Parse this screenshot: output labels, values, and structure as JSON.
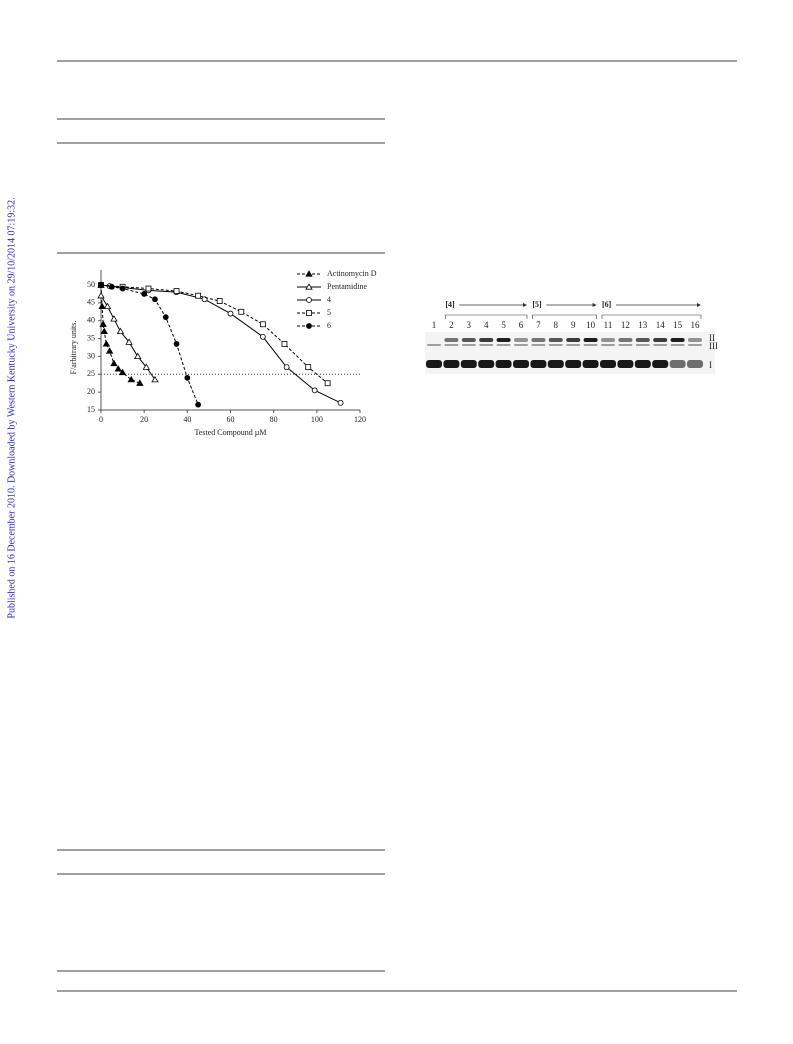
{
  "side_note": "Published on 16 December 2010. Downloaded by Western Kentucky University on 29/10/2014 07:19:32.",
  "chart_data": {
    "type": "line",
    "xlabel": "Tested Compound µM",
    "ylabel": "F/arbitrary units.",
    "xlim": [
      0,
      120
    ],
    "xticks": [
      0,
      20,
      40,
      60,
      80,
      100,
      120
    ],
    "ylim": [
      15,
      50
    ],
    "yticks": [
      15,
      20,
      25,
      30,
      35,
      40,
      45,
      50
    ],
    "reference_line": 25,
    "legend": "top-right",
    "series": [
      {
        "name": "Actinomycin D",
        "color": "#000000",
        "dash": true,
        "marker": "triangle",
        "filled": true,
        "x": [
          0,
          0.5,
          1,
          1.5,
          2.5,
          4,
          6,
          8,
          10,
          14,
          18
        ],
        "values": [
          50,
          44,
          39,
          37,
          33.5,
          31.5,
          28,
          26.5,
          25.5,
          23.5,
          22.5
        ]
      },
      {
        "name": "Pentamidine",
        "color": "#000000",
        "dash": false,
        "marker": "triangle",
        "filled": false,
        "x": [
          0,
          3,
          6,
          9,
          13,
          17,
          21,
          25
        ],
        "values": [
          47,
          44,
          40.5,
          37,
          34,
          30,
          27,
          23.5
        ]
      },
      {
        "name": "4",
        "color": "#000000",
        "dash": false,
        "marker": "circle",
        "filled": false,
        "x": [
          0,
          4,
          10,
          22,
          35,
          48,
          60,
          75,
          86,
          99,
          111
        ],
        "values": [
          50,
          49.7,
          49.3,
          48.5,
          48,
          46,
          42,
          35.5,
          27,
          20.5,
          17
        ]
      },
      {
        "name": "5",
        "color": "#000000",
        "dash": true,
        "marker": "square",
        "filled": false,
        "x": [
          0,
          10,
          22,
          35,
          45,
          55,
          65,
          75,
          85,
          96,
          105
        ],
        "values": [
          50,
          49.5,
          49,
          48.3,
          47,
          45.5,
          42.5,
          39,
          33.5,
          27,
          22.5
        ]
      },
      {
        "name": "6",
        "color": "#000000",
        "dash": true,
        "marker": "circle",
        "filled": true,
        "x": [
          0,
          5,
          10,
          20,
          25,
          30,
          35,
          40,
          45
        ],
        "values": [
          50,
          49.5,
          49,
          47.5,
          46,
          41,
          33.5,
          24,
          16.5
        ]
      }
    ]
  },
  "gel": {
    "groups": [
      "[4]",
      "[5]",
      "[6]"
    ],
    "lanes": [
      "1",
      "2",
      "3",
      "4",
      "5",
      "6",
      "7",
      "8",
      "9",
      "10",
      "11",
      "12",
      "13",
      "14",
      "15",
      "16"
    ],
    "bands": [
      "II",
      "III",
      "I"
    ]
  }
}
